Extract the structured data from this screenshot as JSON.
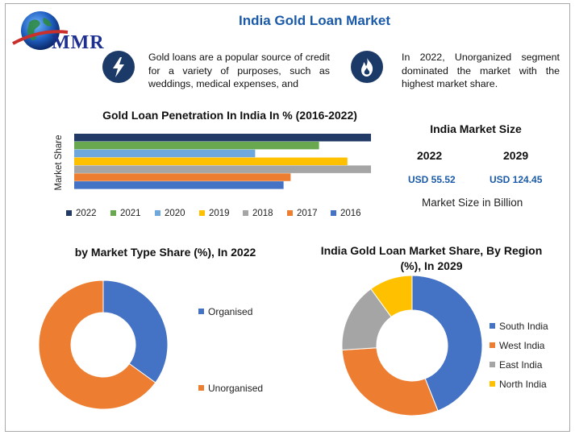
{
  "brand": {
    "logo_text": "MMR"
  },
  "title": "India Gold Loan Market",
  "info": {
    "left_text": "Gold loans are a popular source of credit for a variety of purposes, such as weddings, medical expenses, and",
    "right_text": "In 2022, Unorganized segment dominated the market with the highest market share.",
    "left_icon": "lightning-icon",
    "right_icon": "flame-icon"
  },
  "market_size": {
    "title": "India Market Size",
    "year_a": "2022",
    "year_b": "2029",
    "value_a": "USD 55.52",
    "value_b": "USD 124.45",
    "note": "Market Size in Billion"
  },
  "chart_data": [
    {
      "type": "bar",
      "orientation": "horizontal",
      "title": "Gold Loan Penetration In India In % (2016-2022)",
      "ylabel": "Market Share",
      "xlabel": "",
      "categories": [
        "2022",
        "2021",
        "2020",
        "2019",
        "2018",
        "2017",
        "2016"
      ],
      "values": [
        0.85,
        0.69,
        0.51,
        0.77,
        0.86,
        0.61,
        0.59
      ],
      "value_scale": "relative (no axis printed)",
      "colors": [
        "#213a66",
        "#6aa84f",
        "#6fa8dc",
        "#ffc000",
        "#a5a5a5",
        "#ed7d31",
        "#4472c4"
      ],
      "legend_position": "bottom",
      "grid": false
    },
    {
      "type": "pie",
      "donut": true,
      "title": "by Market Type Share (%), In 2022",
      "categories": [
        "Organised",
        "Unorganised"
      ],
      "values": [
        35,
        65
      ],
      "colors": [
        "#4472c4",
        "#ed7d31"
      ],
      "legend_position": "right"
    },
    {
      "type": "pie",
      "donut": true,
      "title": "India Gold Loan Market Share, By Region (%), In 2029",
      "categories": [
        "South India",
        "West India",
        "East India",
        "North India"
      ],
      "values": [
        44,
        30,
        16,
        10
      ],
      "colors": [
        "#4472c4",
        "#ed7d31",
        "#a5a5a5",
        "#ffc000"
      ],
      "legend_position": "right"
    }
  ]
}
